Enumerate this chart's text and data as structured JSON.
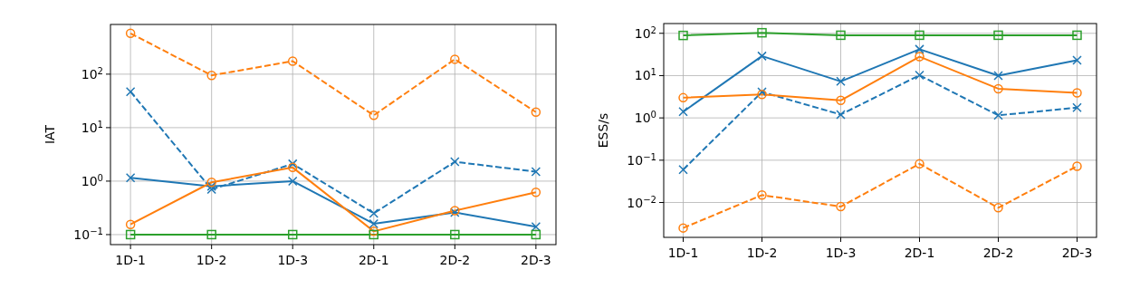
{
  "chart_data": [
    {
      "type": "line",
      "ylabel": "IAT",
      "categories": [
        "1D-1",
        "1D-2",
        "1D-3",
        "2D-1",
        "2D-2",
        "2D-3"
      ],
      "log": true,
      "grid": true,
      "ylim": [
        0.065,
        850
      ],
      "yticks": [
        {
          "value": 0.1,
          "label": "10$^{−1}$"
        },
        {
          "value": 1,
          "label": "10$^{0}$"
        },
        {
          "value": 10,
          "label": "10$^{1}$"
        },
        {
          "value": 100,
          "label": "10$^{2}$"
        }
      ],
      "series": [
        {
          "color": "#1f77b4",
          "marker": "cross",
          "line_style": "dashed",
          "values": [
            47,
            0.7,
            2.1,
            0.25,
            2.3,
            1.5
          ]
        },
        {
          "color": "#1f77b4",
          "marker": "cross",
          "line_style": "solid",
          "values": [
            1.15,
            0.8,
            1.0,
            0.16,
            0.26,
            0.14
          ]
        },
        {
          "color": "#ff7f0e",
          "marker": "circle",
          "line_style": "dashed",
          "values": [
            580,
            95,
            175,
            17,
            190,
            19.5
          ]
        },
        {
          "color": "#ff7f0e",
          "marker": "circle",
          "line_style": "solid",
          "values": [
            0.155,
            0.95,
            1.8,
            0.115,
            0.28,
            0.62
          ]
        },
        {
          "color": "#2ca02c",
          "marker": "square",
          "line_style": "solid",
          "values": [
            0.1,
            0.1,
            0.1,
            0.1,
            0.1,
            0.1
          ]
        }
      ]
    },
    {
      "type": "line",
      "ylabel": "ESS/s",
      "categories": [
        "1D-1",
        "1D-2",
        "1D-3",
        "2D-1",
        "2D-2",
        "2D-3"
      ],
      "log": true,
      "grid": true,
      "ylim": [
        0.0015,
        170
      ],
      "yticks": [
        {
          "value": 0.01,
          "label": "10$^{−2}$"
        },
        {
          "value": 0.1,
          "label": "10$^{−1}$"
        },
        {
          "value": 1,
          "label": "10$^{0}$"
        },
        {
          "value": 10,
          "label": "10$^{1}$"
        },
        {
          "value": 100,
          "label": "10$^{2}$"
        }
      ],
      "series": [
        {
          "color": "#1f77b4",
          "marker": "cross",
          "line_style": "dashed",
          "values": [
            0.06,
            4.1,
            1.2,
            10.2,
            1.15,
            1.75
          ]
        },
        {
          "color": "#1f77b4",
          "marker": "cross",
          "line_style": "solid",
          "values": [
            1.4,
            29,
            7.3,
            42,
            10,
            23
          ]
        },
        {
          "color": "#ff7f0e",
          "marker": "circle",
          "line_style": "dashed",
          "values": [
            0.0025,
            0.015,
            0.008,
            0.082,
            0.0075,
            0.072
          ]
        },
        {
          "color": "#ff7f0e",
          "marker": "circle",
          "line_style": "solid",
          "values": [
            3.0,
            3.6,
            2.6,
            28,
            4.9,
            3.9
          ]
        },
        {
          "color": "#2ca02c",
          "marker": "square",
          "line_style": "solid",
          "values": [
            89,
            103,
            90,
            90,
            90,
            90
          ]
        }
      ]
    }
  ]
}
